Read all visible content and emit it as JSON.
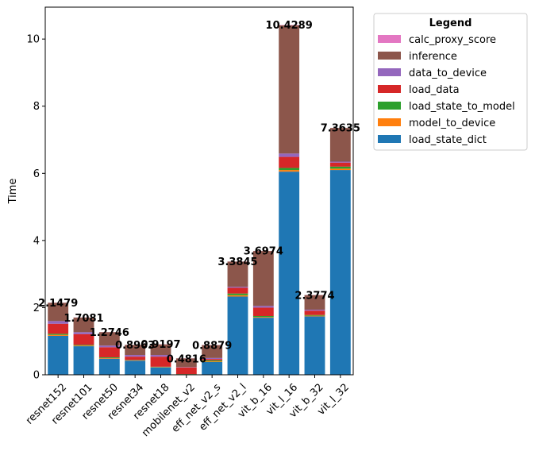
{
  "chart_data": {
    "type": "bar",
    "stacked": true,
    "title": "",
    "xlabel": "",
    "ylabel": "Time",
    "ylim": [
      0,
      10.95
    ],
    "yticks": [
      0,
      2,
      4,
      6,
      8,
      10
    ],
    "grid": false,
    "categories": [
      "resnet152",
      "resnet101",
      "resnet50",
      "resnet34",
      "resnet18",
      "mobilenet_v2",
      "eff_net_v2_s",
      "eff_net_v2_l",
      "vit_b_16",
      "vit_l_16",
      "vit_b_32",
      "vit_l_32"
    ],
    "series": [
      {
        "name": "load_state_dict",
        "color": "#1f77b4",
        "values": [
          1.16,
          0.85,
          0.48,
          0.42,
          0.22,
          0.0,
          0.38,
          2.33,
          1.7,
          6.05,
          1.74,
          6.1
        ]
      },
      {
        "name": "model_to_device",
        "color": "#ff7f0e",
        "values": [
          0.03,
          0.02,
          0.02,
          0.01,
          0.01,
          0.01,
          0.02,
          0.04,
          0.02,
          0.05,
          0.02,
          0.04
        ]
      },
      {
        "name": "load_state_to_model",
        "color": "#2ca02c",
        "values": [
          0.03,
          0.02,
          0.02,
          0.01,
          0.01,
          0.01,
          0.03,
          0.05,
          0.03,
          0.06,
          0.02,
          0.06
        ]
      },
      {
        "name": "load_data",
        "color": "#d62728",
        "values": [
          0.3,
          0.32,
          0.3,
          0.1,
          0.3,
          0.2,
          0.04,
          0.17,
          0.25,
          0.33,
          0.13,
          0.12
        ]
      },
      {
        "name": "data_to_device",
        "color": "#9467bd",
        "values": [
          0.08,
          0.06,
          0.05,
          0.05,
          0.05,
          0.01,
          0.03,
          0.03,
          0.05,
          0.1,
          0.03,
          0.03
        ]
      },
      {
        "name": "inference",
        "color": "#8c564b",
        "values": [
          0.5449,
          0.4351,
          0.4016,
          0.3,
          0.3167,
          0.2586,
          0.3849,
          0.7515,
          1.6374,
          3.82,
          0.4344,
          1.0025
        ]
      },
      {
        "name": "calc_proxy_score",
        "color": "#e377c2",
        "values": [
          0.003,
          0.003,
          0.003,
          0.003,
          0.003,
          0.003,
          0.003,
          0.003,
          0.003,
          0.0089,
          0.003,
          0.001
        ]
      }
    ],
    "totals": [
      2.1479,
      1.7081,
      1.2746,
      0.8963,
      0.9197,
      0.4816,
      0.8879,
      3.3845,
      3.6974,
      10.4289,
      2.3774,
      7.3635
    ],
    "total_labels": [
      "2.1479",
      "1.7081",
      "1.2746",
      "0.8963",
      "0.9197",
      "0.4816",
      "0.8879",
      "3.3845",
      "3.6974",
      "10.4289",
      "2.3774",
      "7.3635"
    ],
    "legend": {
      "title": "Legend",
      "placement": "outside-right",
      "order": [
        "calc_proxy_score",
        "inference",
        "data_to_device",
        "load_data",
        "load_state_to_model",
        "model_to_device",
        "load_state_dict"
      ]
    }
  }
}
